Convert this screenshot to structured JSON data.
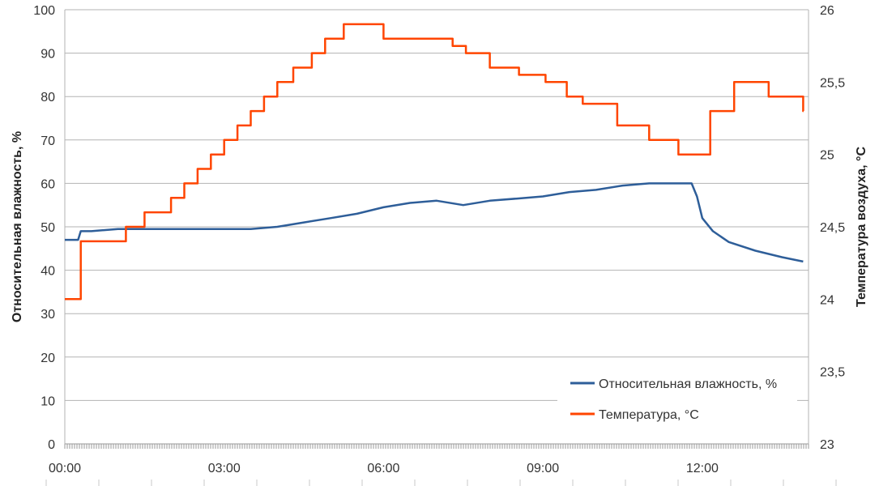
{
  "chart_data": {
    "type": "line",
    "title": "",
    "ylabel": "Относительная влажность, %",
    "y2label": "Температура воздуха, °C",
    "xlabel": "",
    "x_unit": "hours",
    "xlim": [
      0,
      14
    ],
    "x_ticks": [
      {
        "x": 0,
        "label": "00:00"
      },
      {
        "x": 3,
        "label": "03:00"
      },
      {
        "x": 6,
        "label": "06:00"
      },
      {
        "x": 9,
        "label": "09:00"
      },
      {
        "x": 12,
        "label": "12:00"
      }
    ],
    "ylim": [
      0,
      100
    ],
    "y_ticks": [
      "0",
      "10",
      "20",
      "30",
      "40",
      "50",
      "60",
      "70",
      "80",
      "90",
      "100"
    ],
    "y2lim": [
      23,
      26
    ],
    "y2_ticks": [
      "23",
      "23,5",
      "24",
      "24,5",
      "25",
      "25,5",
      "26"
    ],
    "grid": "horizontal",
    "legend_position": "bottom-right",
    "series": [
      {
        "name": "Относительная влажность, %",
        "axis": "left",
        "color": "#2e5e99",
        "x": [
          0.0,
          0.25,
          0.3,
          0.5,
          1.0,
          1.5,
          2.0,
          2.5,
          3.0,
          3.5,
          4.0,
          4.5,
          5.0,
          5.5,
          6.0,
          6.5,
          7.0,
          7.5,
          8.0,
          8.5,
          9.0,
          9.5,
          10.0,
          10.5,
          11.0,
          11.5,
          11.8,
          11.9,
          12.0,
          12.2,
          12.5,
          13.0,
          13.5,
          13.9
        ],
        "values": [
          47,
          47,
          49,
          49,
          49.5,
          49.5,
          49.5,
          49.5,
          49.5,
          49.5,
          50,
          51,
          52,
          53,
          54.5,
          55.5,
          56,
          55,
          56,
          56.5,
          57,
          58,
          58.5,
          59.5,
          60,
          60,
          60,
          57,
          52,
          49,
          46.5,
          44.5,
          43,
          42
        ]
      },
      {
        "name": "Температура, °C",
        "axis": "right",
        "color": "#ff4500",
        "x": [
          0.0,
          0.3,
          1.15,
          1.5,
          2.0,
          2.25,
          2.5,
          2.75,
          3.0,
          3.25,
          3.5,
          3.75,
          4.0,
          4.3,
          4.65,
          4.9,
          5.25,
          5.45,
          6.0,
          6.35,
          6.65,
          7.3,
          7.55,
          8.0,
          8.55,
          9.05,
          9.45,
          9.75,
          10.4,
          11.0,
          11.55,
          11.95,
          12.15,
          12.6,
          13.25,
          13.9
        ],
        "values": [
          24.0,
          24.4,
          24.5,
          24.6,
          24.7,
          24.8,
          24.9,
          25.0,
          25.1,
          25.2,
          25.3,
          25.4,
          25.5,
          25.6,
          25.7,
          25.8,
          25.9,
          25.9,
          25.8,
          25.8,
          25.8,
          25.75,
          25.7,
          25.6,
          25.55,
          25.5,
          25.4,
          25.35,
          25.2,
          25.1,
          25.0,
          25.0,
          25.3,
          25.5,
          25.4,
          25.3
        ]
      }
    ]
  }
}
